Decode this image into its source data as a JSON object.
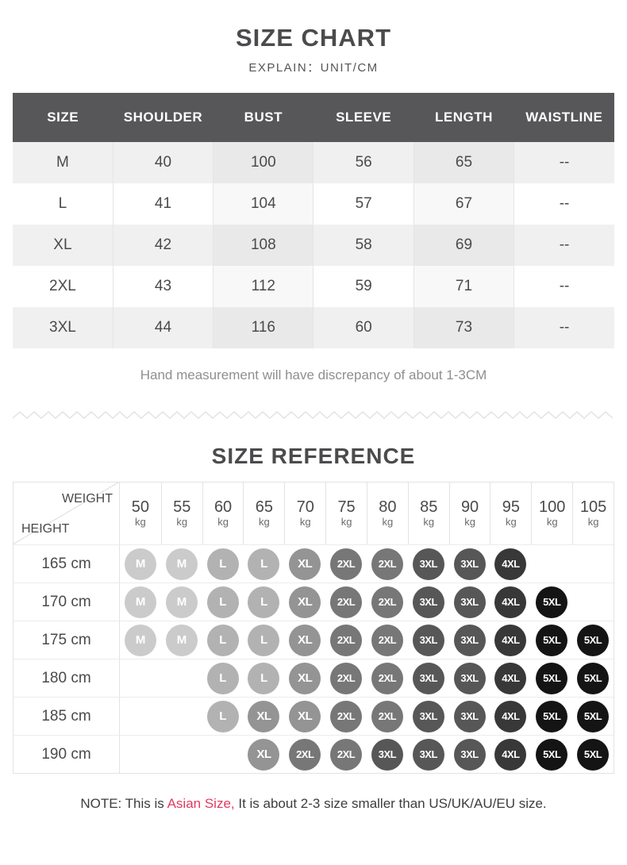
{
  "page": {
    "title": "SIZE CHART",
    "subtitle": "EXPLAIN：UNIT/CM",
    "hand_note": "Hand measurement will have discrepancy of about 1-3CM",
    "reference_title": "SIZE REFERENCE",
    "footer": {
      "prefix": "NOTE: This is ",
      "highlight": "Asian Size,",
      "suffix": " It is about 2-3 size smaller than US/UK/AU/EU size."
    }
  },
  "size_chart": {
    "headers": [
      "SIZE",
      "SHOULDER",
      "BUST",
      "SLEEVE",
      "LENGTH",
      "WAISTLINE"
    ],
    "rows": [
      [
        "M",
        "40",
        "100",
        "56",
        "65",
        "--"
      ],
      [
        "L",
        "41",
        "104",
        "57",
        "67",
        "--"
      ],
      [
        "XL",
        "42",
        "108",
        "58",
        "69",
        "--"
      ],
      [
        "2XL",
        "43",
        "112",
        "59",
        "71",
        "--"
      ],
      [
        "3XL",
        "44",
        "116",
        "60",
        "73",
        "--"
      ]
    ]
  },
  "size_reference": {
    "corner_top_label": "WEIGHT",
    "corner_bottom_label": "HEIGHT",
    "weight_values": [
      "50",
      "55",
      "60",
      "65",
      "70",
      "75",
      "80",
      "85",
      "90",
      "95",
      "100",
      "105"
    ],
    "weight_unit": "kg",
    "heights": [
      "165 cm",
      "170 cm",
      "175 cm",
      "180 cm",
      "185 cm",
      "190 cm"
    ],
    "matrix": [
      [
        "M",
        "M",
        "L",
        "L",
        "XL",
        "2XL",
        "2XL",
        "3XL",
        "3XL",
        "4XL",
        "",
        ""
      ],
      [
        "M",
        "M",
        "L",
        "L",
        "XL",
        "2XL",
        "2XL",
        "3XL",
        "3XL",
        "4XL",
        "5XL",
        ""
      ],
      [
        "M",
        "M",
        "L",
        "L",
        "XL",
        "2XL",
        "2XL",
        "3XL",
        "3XL",
        "4XL",
        "5XL",
        "5XL"
      ],
      [
        "",
        "",
        "L",
        "L",
        "XL",
        "2XL",
        "2XL",
        "3XL",
        "3XL",
        "4XL",
        "5XL",
        "5XL"
      ],
      [
        "",
        "",
        "L",
        "XL",
        "XL",
        "2XL",
        "2XL",
        "3XL",
        "3XL",
        "4XL",
        "5XL",
        "5XL"
      ],
      [
        "",
        "",
        "",
        "XL",
        "2XL",
        "2XL",
        "3XL",
        "3XL",
        "3XL",
        "4XL",
        "5XL",
        "5XL"
      ]
    ],
    "size_colors": {
      "M": "#cbcbcb",
      "L": "#b2b2b2",
      "XL": "#949494",
      "2XL": "#777777",
      "3XL": "#575757",
      "4XL": "#383838",
      "5XL": "#141414"
    }
  },
  "colors": {
    "table_header_bg": "#575659",
    "accent_red": "#e23a5e"
  }
}
